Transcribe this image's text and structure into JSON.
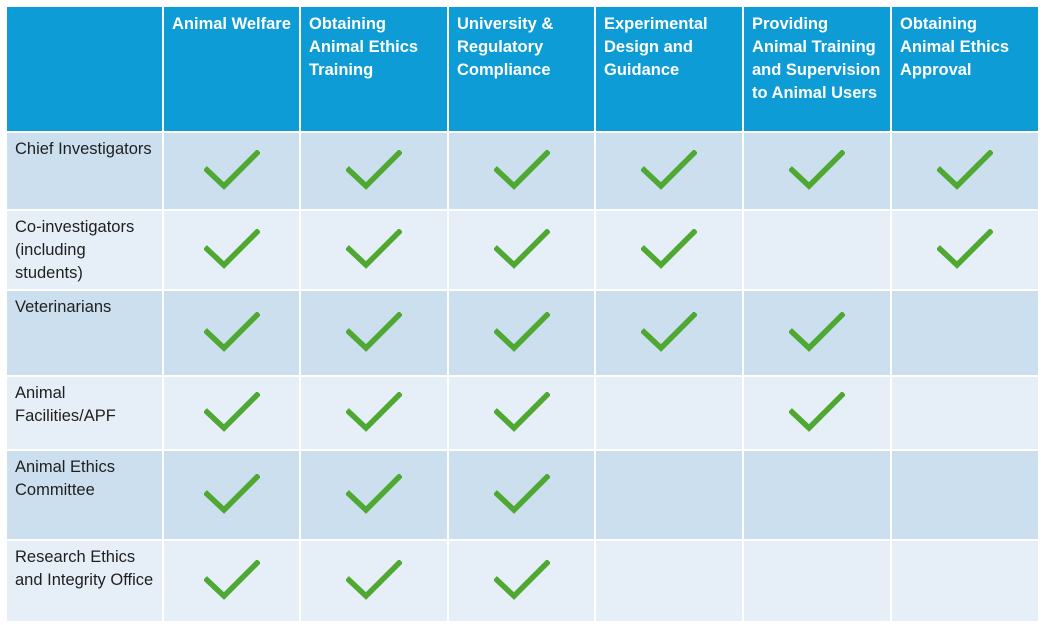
{
  "columns": [
    "",
    "Animal Welfare",
    "Obtaining Animal Ethics Training",
    "University & Regulatory Compliance",
    "Experimental Design and Guidance",
    "Providing Animal Training and Supervision to Animal Users",
    "Obtaining Animal Ethics Approval"
  ],
  "rows": [
    {
      "label": "Chief Investigators",
      "checks": [
        true,
        true,
        true,
        true,
        true,
        true
      ]
    },
    {
      "label": "Co-investigators (including students)",
      "checks": [
        true,
        true,
        true,
        true,
        false,
        true
      ]
    },
    {
      "label": "Veterinarians",
      "checks": [
        true,
        true,
        true,
        true,
        true,
        false
      ]
    },
    {
      "label": "Animal Facilities/APF",
      "checks": [
        true,
        true,
        true,
        false,
        true,
        false
      ]
    },
    {
      "label": "Animal Ethics Committee",
      "checks": [
        true,
        true,
        true,
        false,
        false,
        false
      ]
    },
    {
      "label": "Research Ethics and Integrity Office",
      "checks": [
        true,
        true,
        true,
        false,
        false,
        false
      ]
    }
  ],
  "icons": {
    "check": "checkmark-icon"
  },
  "colors": {
    "header_bg": "#0e9cd6",
    "row_dark": "#cbdfee",
    "row_light": "#e6eff7",
    "check_green": "#4ea832"
  }
}
